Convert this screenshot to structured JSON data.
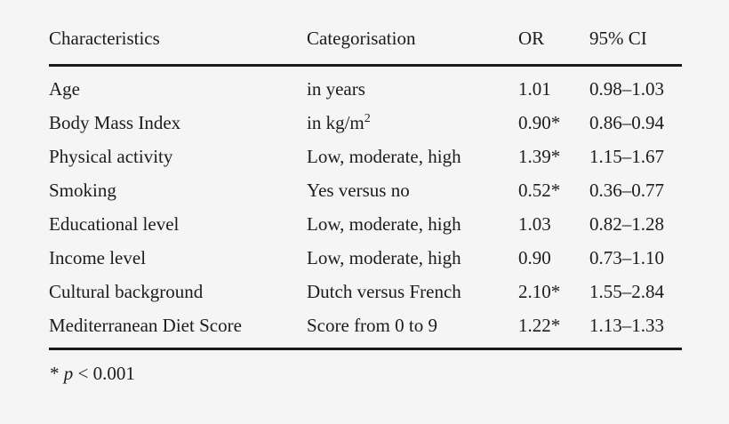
{
  "page": {
    "background": "#f5f5f5",
    "text_color": "#1c1c1c",
    "rule_color": "#1a1a1a"
  },
  "table": {
    "headers": [
      "Characteristics",
      "Categorisation",
      "OR",
      "95% CI"
    ],
    "rows": [
      {
        "characteristic": "Age",
        "categorisation": "in years",
        "categorisation_sup": "",
        "or": "1.01",
        "ci": "0.98–1.03"
      },
      {
        "characteristic": "Body Mass Index",
        "categorisation": "in kg/m",
        "categorisation_sup": "2",
        "or": "0.90*",
        "ci": "0.86–0.94"
      },
      {
        "characteristic": "Physical activity",
        "categorisation": "Low, moderate, high",
        "categorisation_sup": "",
        "or": "1.39*",
        "ci": "1.15–1.67"
      },
      {
        "characteristic": "Smoking",
        "categorisation": "Yes versus no",
        "categorisation_sup": "",
        "or": "0.52*",
        "ci": "0.36–0.77"
      },
      {
        "characteristic": "Educational level",
        "categorisation": "Low, moderate, high",
        "categorisation_sup": "",
        "or": "1.03",
        "ci": "0.82–1.28"
      },
      {
        "characteristic": "Income level",
        "categorisation": "Low, moderate, high",
        "categorisation_sup": "",
        "or": "0.90",
        "ci": "0.73–1.10"
      },
      {
        "characteristic": "Cultural background",
        "categorisation": "Dutch versus French",
        "categorisation_sup": "",
        "or": "2.10*",
        "ci": "1.55–2.84"
      },
      {
        "characteristic": "Mediterranean Diet Score",
        "categorisation": "Score from 0 to 9",
        "categorisation_sup": "",
        "or": "1.22*",
        "ci": "1.13–1.33"
      }
    ]
  },
  "footnote": {
    "marker": "* ",
    "p_symbol": "p",
    "condition": " < 0.001"
  }
}
